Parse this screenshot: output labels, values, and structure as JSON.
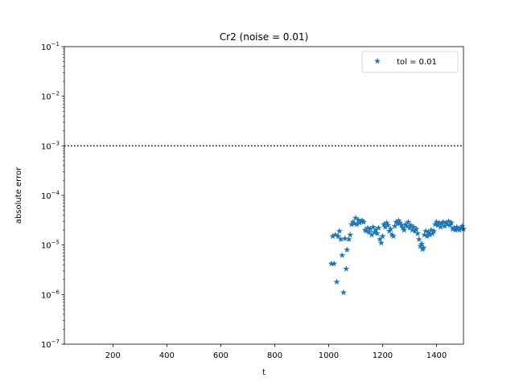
{
  "chart_data": {
    "type": "scatter",
    "title": "Cr2 (noise = 0.01)",
    "xlabel": "t",
    "ylabel": "absolute error",
    "xlim": [
      20,
      1500
    ],
    "ylim": [
      1e-07,
      0.1
    ],
    "yscale": "log",
    "xticks": [
      200,
      400,
      600,
      800,
      1000,
      1200,
      1400
    ],
    "yticks": [
      {
        "value": 1e-07,
        "base": "10",
        "exp": "−7"
      },
      {
        "value": 1e-06,
        "base": "10",
        "exp": "−6"
      },
      {
        "value": 1e-05,
        "base": "10",
        "exp": "−5"
      },
      {
        "value": 0.0001,
        "base": "10",
        "exp": "−4"
      },
      {
        "value": 0.001,
        "base": "10",
        "exp": "−3"
      },
      {
        "value": 0.01,
        "base": "10",
        "exp": "−2"
      },
      {
        "value": 0.1,
        "base": "10",
        "exp": "−1"
      }
    ],
    "threshold_line": {
      "y": 0.001,
      "style": "dotted",
      "color": "#000000"
    },
    "legend": {
      "placement": "top-right",
      "entries": [
        "tol = 0.01"
      ]
    },
    "grid": false,
    "series": [
      {
        "name": "tol = 0.01",
        "color": "#1f77b4",
        "marker": "star",
        "points": [
          [
            1010,
            4.2e-06
          ],
          [
            1015,
            1.5e-05
          ],
          [
            1020,
            4.2e-06
          ],
          [
            1025,
            1.6e-05
          ],
          [
            1030,
            1.8e-06
          ],
          [
            1035,
            1.5e-05
          ],
          [
            1040,
            1.9e-05
          ],
          [
            1045,
            1.3e-05
          ],
          [
            1050,
            6.2e-06
          ],
          [
            1055,
            1.1e-06
          ],
          [
            1060,
            1.35e-05
          ],
          [
            1065,
            3.3e-06
          ],
          [
            1068,
            8e-06
          ],
          [
            1075,
            1.3e-05
          ],
          [
            1080,
            1.6e-05
          ],
          [
            1085,
            2.6e-05
          ],
          [
            1090,
            2.9e-05
          ],
          [
            1095,
            2.7e-05
          ],
          [
            1100,
            3.5e-05
          ],
          [
            1105,
            2.6e-05
          ],
          [
            1110,
            3.2e-05
          ],
          [
            1115,
            2.8e-05
          ],
          [
            1120,
            3e-05
          ],
          [
            1125,
            3.1e-05
          ],
          [
            1130,
            2.9e-05
          ],
          [
            1135,
            2e-05
          ],
          [
            1140,
            1.9e-05
          ],
          [
            1145,
            2.2e-05
          ],
          [
            1150,
            1.8e-05
          ],
          [
            1155,
            2.1e-05
          ],
          [
            1160,
            1.6e-05
          ],
          [
            1165,
            2.3e-05
          ],
          [
            1170,
            1.8e-05
          ],
          [
            1175,
            2e-05
          ],
          [
            1180,
            1.7e-05
          ],
          [
            1185,
            2.2e-05
          ],
          [
            1190,
            1.3e-05
          ],
          [
            1195,
            1.1e-05
          ],
          [
            1200,
            1.5e-05
          ],
          [
            1205,
            2.6e-05
          ],
          [
            1210,
            2.3e-05
          ],
          [
            1215,
            2.8e-05
          ],
          [
            1220,
            2.5e-05
          ],
          [
            1225,
            1.9e-05
          ],
          [
            1230,
            2.1e-05
          ],
          [
            1235,
            1.6e-05
          ],
          [
            1240,
            1.5e-05
          ],
          [
            1245,
            2.4e-05
          ],
          [
            1250,
            2.9e-05
          ],
          [
            1255,
            2.7e-05
          ],
          [
            1260,
            3.1e-05
          ],
          [
            1265,
            2.8e-05
          ],
          [
            1270,
            2.5e-05
          ],
          [
            1275,
            2.2e-05
          ],
          [
            1280,
            2e-05
          ],
          [
            1285,
            2.6e-05
          ],
          [
            1290,
            2.4e-05
          ],
          [
            1295,
            2.9e-05
          ],
          [
            1300,
            2.2e-05
          ],
          [
            1305,
            2.5e-05
          ],
          [
            1310,
            2e-05
          ],
          [
            1315,
            2.3e-05
          ],
          [
            1320,
            1.9e-05
          ],
          [
            1325,
            2.1e-05
          ],
          [
            1330,
            1.7e-05
          ],
          [
            1335,
            1.3e-05
          ],
          [
            1340,
            9.5e-06
          ],
          [
            1345,
            1.05e-05
          ],
          [
            1348,
            8.2e-06
          ],
          [
            1352,
            8.8e-06
          ],
          [
            1355,
            1.6e-05
          ],
          [
            1360,
            1.9e-05
          ],
          [
            1365,
            1.5e-05
          ],
          [
            1370,
            1.8e-05
          ],
          [
            1375,
            1.6e-05
          ],
          [
            1380,
            2e-05
          ],
          [
            1385,
            1.7e-05
          ],
          [
            1390,
            1.9e-05
          ],
          [
            1395,
            2.6e-05
          ],
          [
            1400,
            2.9e-05
          ],
          [
            1405,
            2.5e-05
          ],
          [
            1410,
            2.8e-05
          ],
          [
            1415,
            2.3e-05
          ],
          [
            1420,
            2.7e-05
          ],
          [
            1425,
            2.9e-05
          ],
          [
            1430,
            2.4e-05
          ],
          [
            1435,
            2.8e-05
          ],
          [
            1440,
            2.6e-05
          ],
          [
            1445,
            3e-05
          ],
          [
            1450,
            2.5e-05
          ],
          [
            1455,
            2.8e-05
          ],
          [
            1460,
            2.1e-05
          ],
          [
            1465,
            2.2e-05
          ],
          [
            1470,
            2e-05
          ],
          [
            1475,
            2.3e-05
          ],
          [
            1480,
            2.1e-05
          ],
          [
            1485,
            2e-05
          ],
          [
            1490,
            2.2e-05
          ],
          [
            1495,
            2.4e-05
          ],
          [
            1500,
            2.1e-05
          ]
        ]
      }
    ]
  }
}
